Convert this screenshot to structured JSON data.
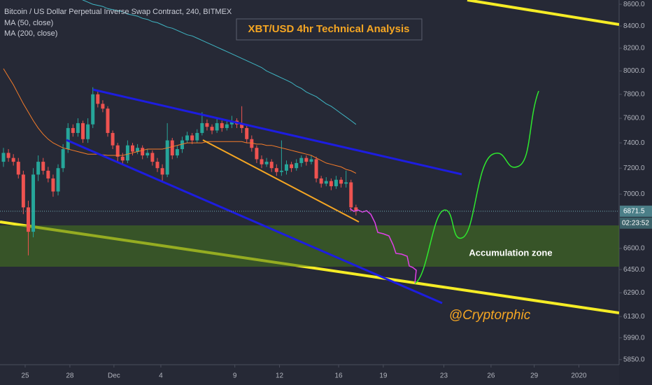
{
  "chart_data": {
    "type": "candlestick",
    "title": "Bitcoin / US Dollar Perpetual Inverse Swap Contract, 240, BITMEX",
    "heading": "XBT/USD 4hr Technical Analysis",
    "zone_label": "Accumulation zone",
    "signature": "@Cryptorphic",
    "countdown": "02:23:52",
    "log_scale": true,
    "grid": false,
    "up_color": "#26a69a",
    "down_color": "#ef5350",
    "xlim": [
      -0.7,
      124
    ],
    "ylim": [
      5818,
      8640
    ],
    "yticks": [
      {
        "value": 8600,
        "label": "8600.0"
      },
      {
        "value": 8400,
        "label": "8400.0"
      },
      {
        "value": 8200,
        "label": "8200.0"
      },
      {
        "value": 8000,
        "label": "8000.0"
      },
      {
        "value": 7800,
        "label": "7800.0"
      },
      {
        "value": 7600,
        "label": "7600.0"
      },
      {
        "value": 7400,
        "label": "7400.0"
      },
      {
        "value": 7200,
        "label": "7200.0"
      },
      {
        "value": 7000,
        "label": "7000.0"
      },
      {
        "value": 6600,
        "label": "6600.0"
      },
      {
        "value": 6450,
        "label": "6450.0"
      },
      {
        "value": 6290,
        "label": "6290.0"
      },
      {
        "value": 6130,
        "label": "6130.0"
      },
      {
        "value": 5990,
        "label": "5990.0"
      },
      {
        "value": 5850,
        "label": "5850.0"
      }
    ],
    "xticks": [
      {
        "value": 4.37,
        "label": "25"
      },
      {
        "value": 13.38,
        "label": "28"
      },
      {
        "value": 22.25,
        "label": "Dec"
      },
      {
        "value": 31.7,
        "label": "4"
      },
      {
        "value": 46.6,
        "label": "9"
      },
      {
        "value": 55.6,
        "label": "12"
      },
      {
        "value": 67.5,
        "label": "16"
      },
      {
        "value": 76.5,
        "label": "19"
      },
      {
        "value": 88.7,
        "label": "23"
      },
      {
        "value": 98.2,
        "label": "26"
      },
      {
        "value": 106.9,
        "label": "29"
      },
      {
        "value": 115.9,
        "label": "2020"
      }
    ],
    "open": [
      7250,
      7320,
      7280,
      7250,
      7150,
      6900,
      6720,
      7150,
      7250,
      7180,
      7120,
      7020,
      7200,
      7350,
      7520,
      7480,
      7560,
      7430,
      7550,
      7800,
      7720,
      7680,
      7480,
      7380,
      7290,
      7260,
      7380,
      7330,
      7360,
      7300,
      7320,
      7250,
      7200,
      7150,
      7420,
      7300,
      7350,
      7420,
      7460,
      7420,
      7480,
      7560,
      7530,
      7500,
      7560,
      7520,
      7550,
      7580,
      7550,
      7520,
      7430,
      7360,
      7270,
      7230,
      7250,
      7200,
      7170,
      7180,
      7230,
      7200,
      7240,
      7280,
      7250,
      7270,
      7120,
      7080,
      7100,
      7060,
      7110,
      7080,
      7090,
      6900
    ],
    "high": [
      7360,
      7350,
      7310,
      7280,
      7180,
      6950,
      7200,
      7300,
      7280,
      7210,
      7150,
      7230,
      7390,
      7560,
      7550,
      7600,
      7580,
      7600,
      7860,
      7830,
      7750,
      7700,
      7500,
      7400,
      7320,
      7420,
      7400,
      7390,
      7380,
      7350,
      7340,
      7280,
      7230,
      7560,
      7440,
      7380,
      7450,
      7490,
      7480,
      7510,
      7650,
      7590,
      7550,
      7600,
      7580,
      7580,
      7620,
      7600,
      7700,
      7540,
      7460,
      7380,
      7300,
      7280,
      7270,
      7230,
      7420,
      7260,
      7250,
      7270,
      7300,
      7300,
      7300,
      7290,
      7140,
      7130,
      7120,
      7140,
      7130,
      7180,
      7110,
      6920
    ],
    "low": [
      7210,
      7250,
      7220,
      7120,
      6850,
      6550,
      6680,
      7100,
      7150,
      7090,
      6980,
      6990,
      7170,
      7320,
      7450,
      7450,
      7400,
      7400,
      7520,
      7690,
      7650,
      7450,
      7350,
      7250,
      7230,
      7240,
      7300,
      7310,
      7270,
      7280,
      7220,
      7170,
      7100,
      7130,
      7270,
      7280,
      7320,
      7400,
      7390,
      7400,
      7460,
      7500,
      7470,
      7480,
      7490,
      7500,
      7520,
      7520,
      7480,
      7400,
      7330,
      7240,
      7200,
      7210,
      7170,
      7140,
      7140,
      7150,
      7170,
      7180,
      7210,
      7220,
      7230,
      7090,
      7050,
      7060,
      7030,
      7040,
      7050,
      7050,
      6870,
      6840
    ],
    "close": [
      7320,
      7280,
      7250,
      7150,
      6900,
      6720,
      7150,
      7250,
      7180,
      7120,
      7020,
      7200,
      7350,
      7520,
      7480,
      7560,
      7430,
      7550,
      7800,
      7720,
      7680,
      7480,
      7380,
      7290,
      7260,
      7380,
      7330,
      7360,
      7300,
      7320,
      7250,
      7200,
      7150,
      7420,
      7300,
      7350,
      7420,
      7460,
      7420,
      7480,
      7560,
      7530,
      7500,
      7560,
      7520,
      7550,
      7580,
      7550,
      7520,
      7430,
      7360,
      7270,
      7230,
      7250,
      7200,
      7170,
      7180,
      7230,
      7200,
      7240,
      7280,
      7250,
      7270,
      7120,
      7080,
      7100,
      7060,
      7110,
      7080,
      7090,
      6900,
      6871.5
    ],
    "series": [
      {
        "name": "MA (50, close)",
        "color": "#f57c2a",
        "values": [
          8020,
          7950,
          7880,
          7800,
          7720,
          7650,
          7580,
          7520,
          7470,
          7430,
          7400,
          7380,
          7360,
          7350,
          7340,
          7330,
          7320,
          7310,
          7310,
          7310,
          7305,
          7300,
          7300,
          7300,
          7300,
          7310,
          7320,
          7330,
          7340,
          7350,
          7350,
          7350,
          7350,
          7360,
          7370,
          7380,
          7390,
          7400,
          7400,
          7400,
          7400,
          7410,
          7410,
          7410,
          7410,
          7410,
          7410,
          7410,
          7410,
          7400,
          7400,
          7390,
          7390,
          7380,
          7380,
          7370,
          7360,
          7350,
          7340,
          7330,
          7320,
          7310,
          7300,
          7280,
          7260,
          7240,
          7230,
          7220,
          7210,
          7190,
          7180,
          7160
        ]
      },
      {
        "name": "MA (200, close)",
        "color": "#3fb6c4",
        "values": [
          null,
          null,
          null,
          null,
          null,
          null,
          null,
          null,
          null,
          null,
          null,
          null,
          null,
          null,
          null,
          8660,
          8640,
          8620,
          8600,
          8590,
          8580,
          8560,
          8550,
          8540,
          8530,
          8510,
          8500,
          8490,
          8470,
          8460,
          8440,
          8430,
          8410,
          8390,
          8380,
          8360,
          8340,
          8320,
          8310,
          8290,
          8270,
          8250,
          8230,
          8210,
          8190,
          8170,
          8150,
          8130,
          8110,
          8090,
          8070,
          8050,
          8030,
          8000,
          7980,
          7960,
          7940,
          7920,
          7900,
          7870,
          7850,
          7820,
          7800,
          7780,
          7750,
          7720,
          7700,
          7670,
          7640,
          7610,
          7580,
          7550
        ]
      }
    ]
  }
}
